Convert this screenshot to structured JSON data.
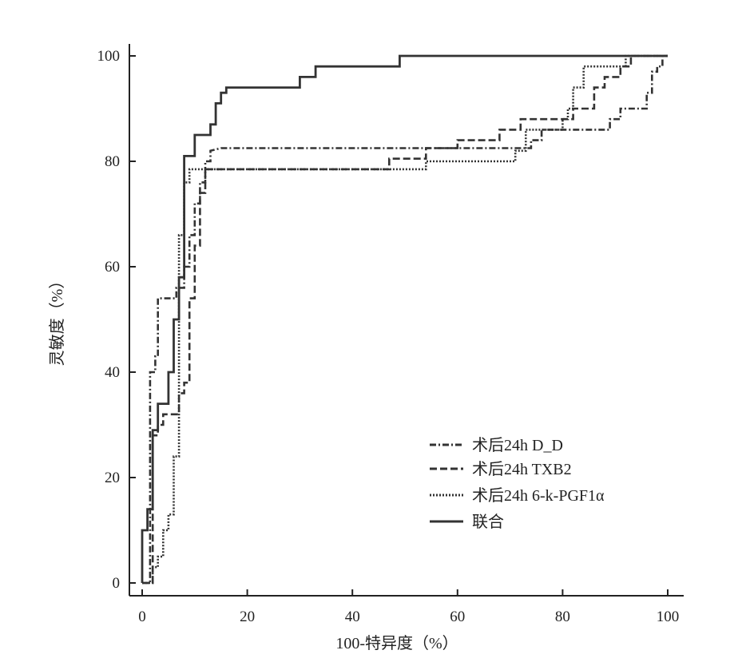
{
  "chart_data": {
    "type": "line",
    "title": "",
    "xlabel": "100-特异度（%）",
    "ylabel": "灵敏度（%）",
    "xlim": [
      0,
      100
    ],
    "ylim": [
      0,
      100
    ],
    "x_ticks": [
      "0",
      "20",
      "40",
      "60",
      "80",
      "100"
    ],
    "y_ticks": [
      "0",
      "20",
      "40",
      "60",
      "80",
      "100"
    ],
    "legend_position": "bottom-right",
    "grid": false,
    "series": [
      {
        "name": "术后24h D_D",
        "style": "dashdot",
        "color": "#333333",
        "points": [
          [
            0,
            0
          ],
          [
            1.5,
            0
          ],
          [
            1.5,
            40
          ],
          [
            2.5,
            40
          ],
          [
            2.5,
            43
          ],
          [
            3,
            43
          ],
          [
            3,
            54
          ],
          [
            6.5,
            54
          ],
          [
            6.5,
            56
          ],
          [
            8,
            56
          ],
          [
            8,
            60
          ],
          [
            9,
            60
          ],
          [
            9,
            66
          ],
          [
            10,
            66
          ],
          [
            10,
            72
          ],
          [
            11,
            72
          ],
          [
            11,
            76
          ],
          [
            12,
            76
          ],
          [
            12,
            80
          ],
          [
            13,
            80
          ],
          [
            13,
            82
          ],
          [
            15,
            82.5
          ],
          [
            74,
            82.5
          ],
          [
            74,
            84
          ],
          [
            76,
            84
          ],
          [
            76,
            86
          ],
          [
            89,
            86
          ],
          [
            89,
            88
          ],
          [
            91,
            88
          ],
          [
            91,
            90
          ],
          [
            96,
            90
          ],
          [
            96,
            93
          ],
          [
            97,
            93
          ],
          [
            97,
            97
          ],
          [
            98,
            97
          ],
          [
            98,
            98
          ],
          [
            99,
            98
          ],
          [
            99,
            100
          ],
          [
            100,
            100
          ]
        ]
      },
      {
        "name": "术后24h TXB2",
        "style": "dashed",
        "color": "#333333",
        "points": [
          [
            0,
            0
          ],
          [
            2,
            0
          ],
          [
            2,
            28
          ],
          [
            3,
            28
          ],
          [
            3,
            30
          ],
          [
            4,
            30
          ],
          [
            4,
            32
          ],
          [
            7,
            32
          ],
          [
            7,
            36
          ],
          [
            8,
            36
          ],
          [
            8,
            38
          ],
          [
            9,
            38
          ],
          [
            9,
            54
          ],
          [
            10,
            54
          ],
          [
            10,
            64
          ],
          [
            11,
            64
          ],
          [
            11,
            74
          ],
          [
            12,
            74
          ],
          [
            12,
            78.5
          ],
          [
            47,
            78.5
          ],
          [
            47,
            80.5
          ],
          [
            54,
            80.5
          ],
          [
            54,
            82.5
          ],
          [
            60,
            82.5
          ],
          [
            60,
            84
          ],
          [
            68,
            84
          ],
          [
            68,
            86
          ],
          [
            72,
            86
          ],
          [
            72,
            88
          ],
          [
            82,
            88
          ],
          [
            82,
            90
          ],
          [
            86,
            90
          ],
          [
            86,
            94
          ],
          [
            88,
            94
          ],
          [
            88,
            96
          ],
          [
            91,
            96
          ],
          [
            91,
            98
          ],
          [
            93,
            98
          ],
          [
            93,
            100
          ],
          [
            100,
            100
          ]
        ]
      },
      {
        "name": "术后24h 6-k-PGF1α",
        "style": "dotted",
        "color": "#333333",
        "points": [
          [
            0,
            0
          ],
          [
            2,
            0
          ],
          [
            2,
            3
          ],
          [
            3,
            3
          ],
          [
            3,
            5
          ],
          [
            4,
            5
          ],
          [
            4,
            10
          ],
          [
            5,
            10
          ],
          [
            5,
            13
          ],
          [
            6,
            13
          ],
          [
            6,
            24
          ],
          [
            7,
            24
          ],
          [
            7,
            66
          ],
          [
            8,
            66
          ],
          [
            8,
            76
          ],
          [
            9,
            76
          ],
          [
            9,
            78.5
          ],
          [
            54,
            78.5
          ],
          [
            54,
            80
          ],
          [
            71,
            80
          ],
          [
            71,
            82
          ],
          [
            73,
            82
          ],
          [
            73,
            86
          ],
          [
            80,
            86
          ],
          [
            80,
            88
          ],
          [
            81,
            88
          ],
          [
            81,
            90
          ],
          [
            82,
            90
          ],
          [
            82,
            94
          ],
          [
            84,
            94
          ],
          [
            84,
            98
          ],
          [
            92,
            98
          ],
          [
            92,
            100
          ],
          [
            100,
            100
          ]
        ]
      },
      {
        "name": "联合",
        "style": "solid",
        "color": "#333333",
        "points": [
          [
            0,
            0
          ],
          [
            0,
            10
          ],
          [
            1,
            10
          ],
          [
            1,
            14
          ],
          [
            2,
            14
          ],
          [
            2,
            29
          ],
          [
            3,
            29
          ],
          [
            3,
            34
          ],
          [
            5,
            34
          ],
          [
            5,
            40
          ],
          [
            6,
            40
          ],
          [
            6,
            50
          ],
          [
            7,
            50
          ],
          [
            7,
            58
          ],
          [
            8,
            58
          ],
          [
            8,
            81
          ],
          [
            10,
            81
          ],
          [
            10,
            85
          ],
          [
            13,
            85
          ],
          [
            13,
            87
          ],
          [
            14,
            87
          ],
          [
            14,
            91
          ],
          [
            15,
            91
          ],
          [
            15,
            93
          ],
          [
            16,
            93
          ],
          [
            16,
            94
          ],
          [
            30,
            94
          ],
          [
            30,
            96
          ],
          [
            33,
            96
          ],
          [
            33,
            98
          ],
          [
            49,
            98
          ],
          [
            49,
            100
          ],
          [
            100,
            100
          ]
        ]
      }
    ]
  }
}
